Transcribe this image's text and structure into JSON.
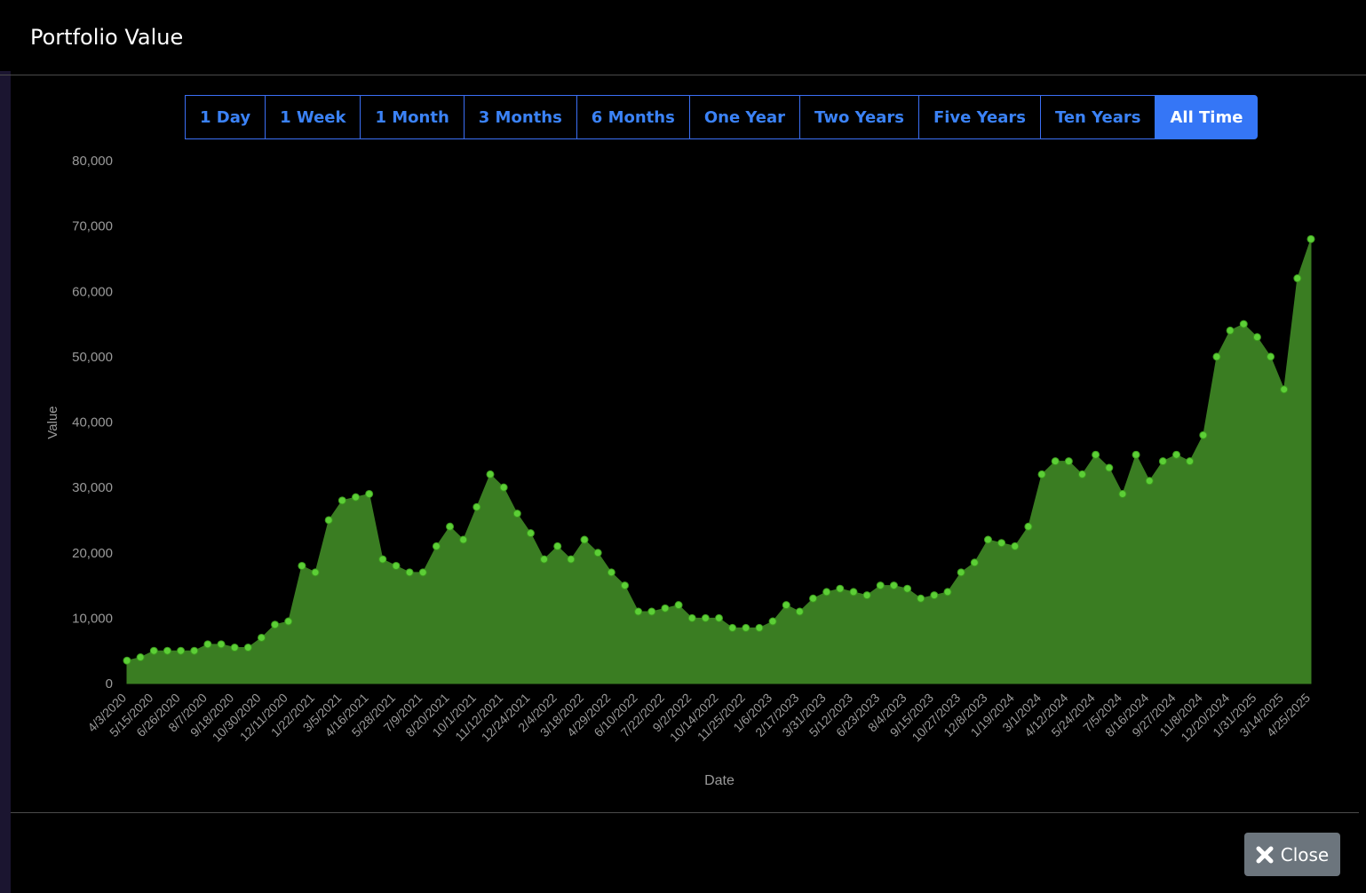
{
  "header": {
    "title": "Portfolio Value"
  },
  "range_buttons": {
    "labels": [
      "1 Day",
      "1 Week",
      "1 Month",
      "3 Months",
      "6 Months",
      "One Year",
      "Two Years",
      "Five Years",
      "Ten Years",
      "All Time"
    ],
    "active": 9
  },
  "footer": {
    "close": "Close"
  },
  "chart_data": {
    "type": "area",
    "x_label": "Date",
    "y_label": "Value",
    "categories": [
      "4/3/2020",
      null,
      "5/15/2020",
      null,
      "6/26/2020",
      null,
      "8/7/2020",
      null,
      "9/18/2020",
      null,
      "10/30/2020",
      null,
      "12/11/2020",
      null,
      "1/22/2021",
      null,
      "3/5/2021",
      null,
      "4/16/2021",
      null,
      "5/28/2021",
      null,
      "7/9/2021",
      null,
      "8/20/2021",
      null,
      "10/1/2021",
      null,
      "11/12/2021",
      null,
      "12/24/2021",
      null,
      "2/4/2022",
      null,
      "3/18/2022",
      null,
      "4/29/2022",
      null,
      "6/10/2022",
      null,
      "7/22/2022",
      null,
      "9/2/2022",
      null,
      "10/14/2022",
      null,
      "11/25/2022",
      null,
      "1/6/2023",
      null,
      "2/17/2023",
      null,
      "3/31/2023",
      null,
      "5/12/2023",
      null,
      "6/23/2023",
      null,
      "8/4/2023",
      null,
      "9/15/2023",
      null,
      "10/27/2023",
      null,
      "12/8/2023",
      null,
      "1/19/2024",
      null,
      "3/1/2024",
      null,
      "4/12/2024",
      null,
      "5/24/2024",
      null,
      "7/5/2024",
      null,
      "8/16/2024",
      null,
      "9/27/2024",
      null,
      "11/8/2024",
      null,
      "12/20/2024",
      null,
      "1/31/2025",
      null,
      "3/14/2025",
      null,
      "4/25/2025"
    ],
    "values": [
      3500,
      4000,
      5000,
      5000,
      5000,
      5000,
      6000,
      6000,
      5500,
      5500,
      7000,
      9000,
      9500,
      18000,
      17000,
      25000,
      28000,
      28500,
      29000,
      19000,
      18000,
      17000,
      17000,
      21000,
      24000,
      22000,
      27000,
      32000,
      30000,
      26000,
      23000,
      19000,
      21000,
      19000,
      22000,
      20000,
      17000,
      15000,
      11000,
      11000,
      11500,
      12000,
      10000,
      10000,
      10000,
      8500,
      8500,
      8500,
      9500,
      12000,
      11000,
      13000,
      14000,
      14500,
      14000,
      13500,
      15000,
      15000,
      14500,
      13000,
      13500,
      14000,
      17000,
      18500,
      22000,
      21500,
      21000,
      24000,
      32000,
      34000,
      34000,
      32000,
      35000,
      33000,
      29000,
      35000,
      31000,
      34000,
      35000,
      34000,
      38000,
      50000,
      54000,
      55000,
      53000,
      50000,
      45000,
      62000,
      68000
    ],
    "color": "#3a7d22",
    "marker_color": "#5ccf36",
    "ylim": [
      0,
      80000
    ],
    "yticks": [
      0,
      {
        "value": 10000,
        "label": "10,000"
      },
      {
        "value": 20000,
        "label": "20,000"
      },
      {
        "value": 30000,
        "label": "30,000"
      },
      {
        "value": 40000,
        "label": "40,000"
      },
      {
        "value": 50000,
        "label": "50,000"
      },
      {
        "value": 60000,
        "label": "60,000"
      },
      {
        "value": 70000,
        "label": "70,000"
      },
      {
        "value": 80000,
        "label": "80,000"
      }
    ],
    "grid": false
  }
}
